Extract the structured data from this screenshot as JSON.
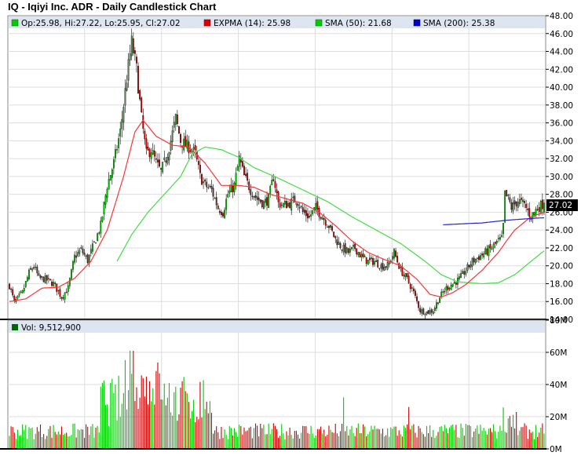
{
  "title": "IQ - Iqiyi Inc. ADR - Daily Candlestick Chart",
  "legend": {
    "price": "Op:25.98, Hi:27.22, Lo:25.95, Cl:27.02",
    "expma": "EXPMA (14): 25.98",
    "sma50": "SMA (50): 21.68",
    "sma200": "SMA (200): 25.38",
    "volume": "Vol: 9,512,900"
  },
  "last_price_label": "27.02",
  "colors": {
    "up": "#00cc00",
    "down": "#cc0000",
    "expma": "#ff3333",
    "sma50": "#44dd44",
    "sma200": "#2222cc",
    "legend_bg": "#dde4f2",
    "grid": "#dddddd",
    "last_price_bg": "#000000"
  },
  "chart_data": [
    {
      "type": "candlestick",
      "y_ticks": [
        "48.00",
        "46.00",
        "44.00",
        "42.00",
        "40.00",
        "38.00",
        "36.00",
        "34.00",
        "32.00",
        "30.00",
        "28.00",
        "26.00",
        "24.00",
        "22.00",
        "20.00",
        "18.00",
        "16.00",
        "14.00"
      ],
      "ylim": [
        14,
        48
      ],
      "grid": true,
      "last_close": 27.02,
      "keypoints": [
        [
          0,
          17.8
        ],
        [
          3,
          15.9
        ],
        [
          8,
          17.0
        ],
        [
          12,
          19.2
        ],
        [
          15,
          20.0
        ],
        [
          18,
          18.6
        ],
        [
          22,
          18.5
        ],
        [
          27,
          18.0
        ],
        [
          32,
          16.5
        ],
        [
          36,
          17.5
        ],
        [
          40,
          21.0
        ],
        [
          44,
          21.8
        ],
        [
          48,
          20.6
        ],
        [
          52,
          22.5
        ],
        [
          56,
          24.5
        ],
        [
          60,
          29.0
        ],
        [
          64,
          31.5
        ],
        [
          68,
          35.0
        ],
        [
          72,
          41.0
        ],
        [
          75,
          45.0
        ],
        [
          78,
          42.0
        ],
        [
          81,
          36.5
        ],
        [
          84,
          32.5
        ],
        [
          87,
          33.0
        ],
        [
          90,
          31.5
        ],
        [
          93,
          30.5
        ],
        [
          96,
          32.0
        ],
        [
          99,
          34.0
        ],
        [
          102,
          36.5
        ],
        [
          105,
          34.0
        ],
        [
          108,
          33.5
        ],
        [
          111,
          33.2
        ],
        [
          114,
          32.5
        ],
        [
          117,
          30.0
        ],
        [
          120,
          29.0
        ],
        [
          124,
          28.5
        ],
        [
          128,
          26.5
        ],
        [
          131,
          26.0
        ],
        [
          134,
          28.0
        ],
        [
          138,
          29.0
        ],
        [
          141,
          32.0
        ],
        [
          144,
          30.0
        ],
        [
          148,
          28.5
        ],
        [
          152,
          27.5
        ],
        [
          156,
          27.0
        ],
        [
          159,
          27.5
        ],
        [
          162,
          30.0
        ],
        [
          165,
          27.0
        ],
        [
          168,
          26.8
        ],
        [
          172,
          27.0
        ],
        [
          176,
          27.5
        ],
        [
          180,
          26.0
        ],
        [
          184,
          25.5
        ],
        [
          188,
          26.5
        ],
        [
          192,
          25.5
        ],
        [
          196,
          24.5
        ],
        [
          200,
          23.0
        ],
        [
          204,
          22.0
        ],
        [
          208,
          21.5
        ],
        [
          212,
          22.0
        ],
        [
          216,
          21.0
        ],
        [
          220,
          20.5
        ],
        [
          224,
          20.5
        ],
        [
          228,
          20.0
        ],
        [
          232,
          20.0
        ],
        [
          236,
          21.5
        ],
        [
          240,
          19.5
        ],
        [
          244,
          18.5
        ],
        [
          248,
          17.0
        ],
        [
          252,
          15.0
        ],
        [
          256,
          14.8
        ],
        [
          260,
          15.0
        ],
        [
          264,
          16.5
        ],
        [
          268,
          17.5
        ],
        [
          272,
          18.0
        ],
        [
          276,
          18.5
        ],
        [
          280,
          19.5
        ],
        [
          284,
          20.5
        ],
        [
          288,
          21.0
        ],
        [
          292,
          21.5
        ],
        [
          296,
          22.0
        ],
        [
          300,
          22.8
        ],
        [
          302,
          23.0
        ],
        [
          303,
          24.5
        ],
        [
          304,
          28.0
        ],
        [
          306,
          27.5
        ],
        [
          308,
          26.5
        ],
        [
          312,
          27.3
        ],
        [
          316,
          26.8
        ],
        [
          320,
          25.5
        ],
        [
          324,
          26.5
        ],
        [
          328,
          27.02
        ]
      ],
      "expma_14": [
        [
          0,
          16.0
        ],
        [
          10,
          16.3
        ],
        [
          20,
          17.5
        ],
        [
          30,
          17.6
        ],
        [
          40,
          18.6
        ],
        [
          50,
          20.5
        ],
        [
          60,
          24.0
        ],
        [
          70,
          30.0
        ],
        [
          77,
          35.0
        ],
        [
          82,
          36.3
        ],
        [
          90,
          34.5
        ],
        [
          100,
          33.5
        ],
        [
          110,
          33.3
        ],
        [
          120,
          31.5
        ],
        [
          130,
          29.0
        ],
        [
          140,
          29.0
        ],
        [
          150,
          28.8
        ],
        [
          160,
          28.0
        ],
        [
          170,
          27.5
        ],
        [
          180,
          27.0
        ],
        [
          190,
          26.0
        ],
        [
          200,
          24.5
        ],
        [
          210,
          22.8
        ],
        [
          220,
          21.5
        ],
        [
          230,
          20.7
        ],
        [
          240,
          20.0
        ],
        [
          250,
          18.5
        ],
        [
          258,
          16.8
        ],
        [
          265,
          16.5
        ],
        [
          272,
          17.0
        ],
        [
          280,
          17.9
        ],
        [
          290,
          19.5
        ],
        [
          300,
          21.5
        ],
        [
          305,
          22.8
        ],
        [
          310,
          24.0
        ],
        [
          320,
          25.5
        ],
        [
          328,
          25.98
        ]
      ],
      "sma_50": [
        [
          66,
          20.5
        ],
        [
          75,
          23.5
        ],
        [
          85,
          26.0
        ],
        [
          95,
          28.0
        ],
        [
          105,
          30.0
        ],
        [
          112,
          32.5
        ],
        [
          120,
          33.3
        ],
        [
          130,
          33.0
        ],
        [
          140,
          32.2
        ],
        [
          150,
          31.0
        ],
        [
          165,
          29.8
        ],
        [
          180,
          28.5
        ],
        [
          195,
          27.2
        ],
        [
          210,
          25.5
        ],
        [
          225,
          24.0
        ],
        [
          240,
          22.5
        ],
        [
          255,
          20.5
        ],
        [
          265,
          19.0
        ],
        [
          275,
          18.2
        ],
        [
          290,
          18.0
        ],
        [
          300,
          18.1
        ],
        [
          310,
          19.0
        ],
        [
          320,
          20.5
        ],
        [
          328,
          21.68
        ]
      ],
      "sma_200": [
        [
          266,
          24.6
        ],
        [
          290,
          24.8
        ],
        [
          305,
          25.1
        ],
        [
          320,
          25.3
        ],
        [
          328,
          25.38
        ]
      ]
    },
    {
      "type": "bar",
      "series_name": "Volume",
      "y_ticks": [
        "80M",
        "60M",
        "40M",
        "20M",
        "0M"
      ],
      "ylim": [
        0,
        80
      ],
      "last_volume": 9.5129
    }
  ]
}
